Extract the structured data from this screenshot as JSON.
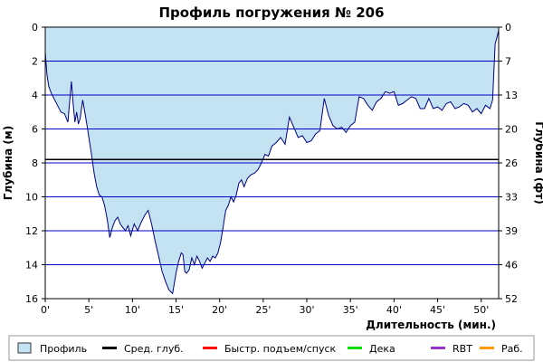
{
  "chart_data": {
    "type": "area",
    "title": "Профиль погружения № 206",
    "ylabel_left": "Глубина (м)",
    "ylabel_right": "Глубина (фт)",
    "xlabel": "Длительность (мин.)",
    "xlim": [
      0,
      52
    ],
    "ylim": [
      0,
      16
    ],
    "y_inverted": true,
    "x_ticks": [
      0,
      5,
      10,
      15,
      20,
      25,
      30,
      35,
      40,
      45,
      50
    ],
    "x_tick_labels": [
      "0'",
      "5'",
      "10'",
      "15'",
      "20'",
      "25'",
      "30'",
      "35'",
      "40'",
      "45'",
      "50'"
    ],
    "y_ticks_left": [
      0,
      2,
      4,
      6,
      8,
      10,
      12,
      14,
      16
    ],
    "y_ticks_right": [
      0,
      7,
      13,
      20,
      26,
      33,
      39,
      46,
      52
    ],
    "avg_depth": 7.8,
    "grid": true,
    "colors": {
      "fill": "#c3e2f2",
      "profile_line": "#000080",
      "grid": "#0000cc",
      "avg_line": "#000000",
      "ascent": "#ff0000",
      "deco": "#00dd00",
      "rbt": "#9933cc",
      "work": "#ff9900"
    },
    "series": [
      {
        "name": "Профиль",
        "x": [
          0,
          0.2,
          0.4,
          0.7,
          1.0,
          1.4,
          1.8,
          2.2,
          2.6,
          3.0,
          3.2,
          3.4,
          3.6,
          3.8,
          4.0,
          4.3,
          4.6,
          4.8,
          5.0,
          5.3,
          5.6,
          5.9,
          6.2,
          6.5,
          6.8,
          7.1,
          7.4,
          7.7,
          8.0,
          8.3,
          8.6,
          8.9,
          9.2,
          9.5,
          9.8,
          10.2,
          10.6,
          11.0,
          11.4,
          11.8,
          12.2,
          12.6,
          13.0,
          13.4,
          13.8,
          14.2,
          14.6,
          15.0,
          15.3,
          15.6,
          15.8,
          16.0,
          16.2,
          16.5,
          16.8,
          17.1,
          17.4,
          17.7,
          18.0,
          18.3,
          18.6,
          18.9,
          19.2,
          19.5,
          19.8,
          20.1,
          20.4,
          20.7,
          21.0,
          21.3,
          21.6,
          21.9,
          22.2,
          22.5,
          22.8,
          23.2,
          23.6,
          24.0,
          24.4,
          24.8,
          25.2,
          25.6,
          26.0,
          26.5,
          27.0,
          27.5,
          28.0,
          28.5,
          29.0,
          29.5,
          30.0,
          30.5,
          31.0,
          31.5,
          32.0,
          32.5,
          33.0,
          33.5,
          34.0,
          34.5,
          35.0,
          35.5,
          36.0,
          36.5,
          37.0,
          37.5,
          38.0,
          38.5,
          39.0,
          39.5,
          40.0,
          40.5,
          41.0,
          41.5,
          42.0,
          42.5,
          43.0,
          43.5,
          44.0,
          44.5,
          45.0,
          45.5,
          46.0,
          46.5,
          47.0,
          47.5,
          48.0,
          48.5,
          49.0,
          49.5,
          50.0,
          50.5,
          51.0,
          51.3,
          51.6,
          51.8,
          52.0
        ],
        "y": [
          1.5,
          2.8,
          3.5,
          3.9,
          4.2,
          4.6,
          5.0,
          5.1,
          5.6,
          3.2,
          4.5,
          5.6,
          5.0,
          5.7,
          5.4,
          4.3,
          5.2,
          5.8,
          6.5,
          7.5,
          8.6,
          9.4,
          9.9,
          10.0,
          10.5,
          11.3,
          12.4,
          11.8,
          11.4,
          11.2,
          11.6,
          11.8,
          12.0,
          11.7,
          12.3,
          11.6,
          12.0,
          11.5,
          11.1,
          10.8,
          11.6,
          12.6,
          13.5,
          14.4,
          15.0,
          15.5,
          15.7,
          14.5,
          13.8,
          13.3,
          13.4,
          14.4,
          14.5,
          14.3,
          13.6,
          14.0,
          13.5,
          13.8,
          14.2,
          13.9,
          13.6,
          13.8,
          13.5,
          13.6,
          13.3,
          12.7,
          11.8,
          10.8,
          10.5,
          10.0,
          10.3,
          9.9,
          9.2,
          9.0,
          9.4,
          8.9,
          8.7,
          8.6,
          8.4,
          8.0,
          7.5,
          7.6,
          7.0,
          6.8,
          6.5,
          6.9,
          5.3,
          5.9,
          6.5,
          6.4,
          6.8,
          6.7,
          6.3,
          6.1,
          4.2,
          5.2,
          5.8,
          6.0,
          5.9,
          6.2,
          5.8,
          5.6,
          4.1,
          4.2,
          4.6,
          4.9,
          4.4,
          4.2,
          3.8,
          3.9,
          3.8,
          4.6,
          4.5,
          4.3,
          4.1,
          4.2,
          4.8,
          4.8,
          4.2,
          4.8,
          4.7,
          4.9,
          4.5,
          4.4,
          4.8,
          4.7,
          4.5,
          4.6,
          5.0,
          4.8,
          5.1,
          4.6,
          4.8,
          4.3,
          1.0,
          0.6,
          0.2
        ]
      }
    ],
    "legend": [
      {
        "label": "Профиль",
        "kind": "box",
        "color": "#c3e2f2"
      },
      {
        "label": "Сред. глуб.",
        "kind": "line",
        "color": "#000000"
      },
      {
        "label": "Быстр. подъем/спуск",
        "kind": "line",
        "color": "#ff0000"
      },
      {
        "label": "Дека",
        "kind": "line",
        "color": "#00dd00"
      },
      {
        "label": "RBT",
        "kind": "line",
        "color": "#9933cc"
      },
      {
        "label": "Раб.",
        "kind": "line",
        "color": "#ff9900"
      }
    ]
  }
}
